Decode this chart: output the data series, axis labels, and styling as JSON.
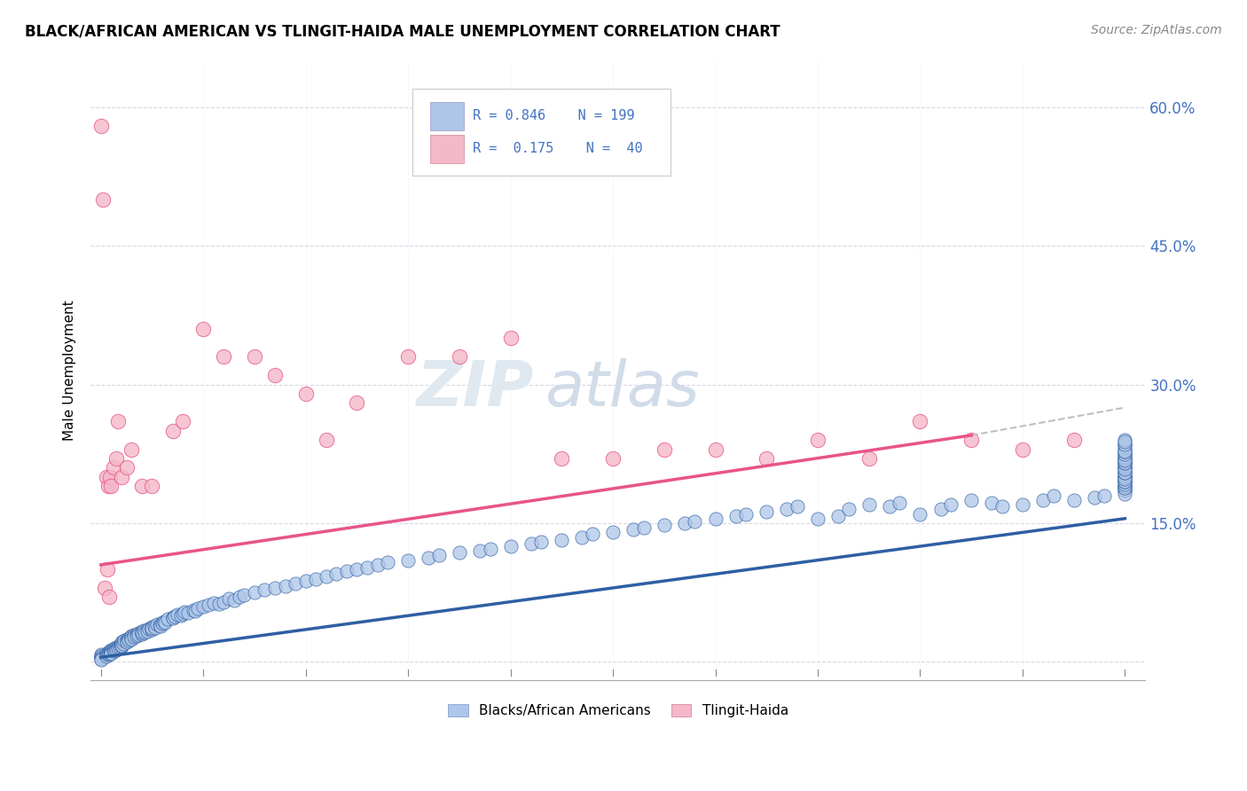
{
  "title": "BLACK/AFRICAN AMERICAN VS TLINGIT-HAIDA MALE UNEMPLOYMENT CORRELATION CHART",
  "source": "Source: ZipAtlas.com",
  "ylabel": "Male Unemployment",
  "color_blue": "#aec6e8",
  "color_pink": "#f4b8c8",
  "line_blue": "#2e5fa3",
  "line_pink": "#e8548a",
  "line_dash_color": "#c0c0c0",
  "legend_text_color": "#4472c4",
  "background_color": "#ffffff",
  "grid_color": "#d8d8e8",
  "ylim": [
    -0.02,
    0.65
  ],
  "xlim": [
    -0.01,
    1.02
  ],
  "blue_line_x0": 0.0,
  "blue_line_y0": 0.005,
  "blue_line_x1": 1.0,
  "blue_line_y1": 0.155,
  "pink_line_x0": 0.0,
  "pink_line_y0": 0.105,
  "pink_line_x1": 0.85,
  "pink_line_y1": 0.245,
  "dash_line_x0": 0.85,
  "dash_line_y0": 0.245,
  "dash_line_x1": 1.0,
  "dash_line_y1": 0.275,
  "yticks": [
    0.0,
    0.15,
    0.3,
    0.45,
    0.6
  ],
  "ytick_labels": [
    "",
    "15.0%",
    "30.0%",
    "45.0%",
    "60.0%"
  ],
  "scatter_blue_x": [
    0.0,
    0.0,
    0.0,
    0.0,
    0.0,
    0.0,
    0.0,
    0.005,
    0.005,
    0.005,
    0.007,
    0.007,
    0.008,
    0.008,
    0.01,
    0.01,
    0.01,
    0.01,
    0.01,
    0.01,
    0.01,
    0.012,
    0.012,
    0.013,
    0.013,
    0.015,
    0.015,
    0.015,
    0.017,
    0.017,
    0.018,
    0.018,
    0.02,
    0.02,
    0.02,
    0.02,
    0.02,
    0.02,
    0.02,
    0.022,
    0.022,
    0.023,
    0.025,
    0.025,
    0.025,
    0.027,
    0.027,
    0.03,
    0.03,
    0.03,
    0.03,
    0.03,
    0.032,
    0.032,
    0.035,
    0.035,
    0.037,
    0.037,
    0.04,
    0.04,
    0.04,
    0.04,
    0.042,
    0.043,
    0.045,
    0.045,
    0.047,
    0.05,
    0.05,
    0.05,
    0.05,
    0.052,
    0.053,
    0.055,
    0.057,
    0.058,
    0.06,
    0.06,
    0.062,
    0.063,
    0.065,
    0.07,
    0.07,
    0.072,
    0.075,
    0.078,
    0.08,
    0.082,
    0.085,
    0.09,
    0.092,
    0.095,
    0.1,
    0.105,
    0.11,
    0.115,
    0.12,
    0.125,
    0.13,
    0.135,
    0.14,
    0.15,
    0.16,
    0.17,
    0.18,
    0.19,
    0.2,
    0.21,
    0.22,
    0.23,
    0.24,
    0.25,
    0.26,
    0.27,
    0.28,
    0.3,
    0.32,
    0.33,
    0.35,
    0.37,
    0.38,
    0.4,
    0.42,
    0.43,
    0.45,
    0.47,
    0.48,
    0.5,
    0.52,
    0.53,
    0.55,
    0.57,
    0.58,
    0.6,
    0.62,
    0.63,
    0.65,
    0.67,
    0.68,
    0.7,
    0.72,
    0.73,
    0.75,
    0.77,
    0.78,
    0.8,
    0.82,
    0.83,
    0.85,
    0.87,
    0.88,
    0.9,
    0.92,
    0.93,
    0.95,
    0.97,
    0.98,
    1.0,
    1.0,
    1.0,
    1.0,
    1.0,
    1.0,
    1.0,
    1.0,
    1.0,
    1.0,
    1.0,
    1.0,
    1.0,
    1.0,
    1.0,
    1.0,
    1.0,
    1.0,
    1.0,
    1.0,
    1.0,
    1.0,
    1.0,
    1.0,
    1.0,
    1.0,
    1.0,
    1.0,
    1.0,
    1.0,
    1.0,
    1.0,
    1.0,
    1.0,
    1.0,
    1.0,
    1.0,
    1.0,
    1.0,
    1.0,
    1.0,
    1.0
  ],
  "scatter_blue_y": [
    0.005,
    0.007,
    0.008,
    0.006,
    0.004,
    0.003,
    0.002,
    0.008,
    0.009,
    0.006,
    0.01,
    0.008,
    0.011,
    0.009,
    0.012,
    0.013,
    0.011,
    0.01,
    0.012,
    0.01,
    0.009,
    0.014,
    0.013,
    0.015,
    0.012,
    0.016,
    0.014,
    0.013,
    0.017,
    0.015,
    0.018,
    0.016,
    0.019,
    0.02,
    0.018,
    0.017,
    0.019,
    0.021,
    0.018,
    0.022,
    0.02,
    0.023,
    0.024,
    0.022,
    0.021,
    0.025,
    0.023,
    0.026,
    0.028,
    0.025,
    0.027,
    0.024,
    0.029,
    0.027,
    0.03,
    0.028,
    0.031,
    0.029,
    0.033,
    0.031,
    0.03,
    0.032,
    0.034,
    0.032,
    0.035,
    0.033,
    0.036,
    0.038,
    0.036,
    0.035,
    0.037,
    0.039,
    0.037,
    0.041,
    0.04,
    0.039,
    0.043,
    0.042,
    0.044,
    0.043,
    0.046,
    0.048,
    0.047,
    0.049,
    0.051,
    0.05,
    0.052,
    0.054,
    0.053,
    0.056,
    0.055,
    0.058,
    0.06,
    0.062,
    0.064,
    0.063,
    0.065,
    0.068,
    0.067,
    0.07,
    0.072,
    0.075,
    0.078,
    0.08,
    0.082,
    0.085,
    0.088,
    0.09,
    0.092,
    0.095,
    0.098,
    0.1,
    0.102,
    0.105,
    0.108,
    0.11,
    0.113,
    0.115,
    0.118,
    0.12,
    0.122,
    0.125,
    0.128,
    0.13,
    0.132,
    0.135,
    0.138,
    0.14,
    0.143,
    0.145,
    0.148,
    0.15,
    0.152,
    0.155,
    0.158,
    0.16,
    0.162,
    0.165,
    0.168,
    0.155,
    0.158,
    0.165,
    0.17,
    0.168,
    0.172,
    0.16,
    0.165,
    0.17,
    0.175,
    0.172,
    0.168,
    0.17,
    0.175,
    0.18,
    0.175,
    0.178,
    0.18,
    0.185,
    0.185,
    0.19,
    0.188,
    0.182,
    0.195,
    0.19,
    0.188,
    0.192,
    0.195,
    0.2,
    0.198,
    0.195,
    0.2,
    0.205,
    0.202,
    0.198,
    0.205,
    0.21,
    0.208,
    0.205,
    0.21,
    0.215,
    0.212,
    0.208,
    0.215,
    0.22,
    0.218,
    0.215,
    0.22,
    0.225,
    0.222,
    0.218,
    0.225,
    0.23,
    0.228,
    0.235,
    0.232,
    0.228,
    0.235,
    0.24,
    0.238
  ],
  "scatter_pink_x": [
    0.0,
    0.002,
    0.004,
    0.005,
    0.006,
    0.007,
    0.008,
    0.009,
    0.01,
    0.012,
    0.015,
    0.017,
    0.02,
    0.025,
    0.03,
    0.04,
    0.05,
    0.07,
    0.08,
    0.1,
    0.12,
    0.15,
    0.17,
    0.2,
    0.22,
    0.25,
    0.3,
    0.35,
    0.4,
    0.45,
    0.5,
    0.55,
    0.6,
    0.65,
    0.7,
    0.75,
    0.8,
    0.85,
    0.9,
    0.95
  ],
  "scatter_pink_y": [
    0.58,
    0.5,
    0.08,
    0.2,
    0.1,
    0.19,
    0.07,
    0.2,
    0.19,
    0.21,
    0.22,
    0.26,
    0.2,
    0.21,
    0.23,
    0.19,
    0.19,
    0.25,
    0.26,
    0.36,
    0.33,
    0.33,
    0.31,
    0.29,
    0.24,
    0.28,
    0.33,
    0.33,
    0.35,
    0.22,
    0.22,
    0.23,
    0.23,
    0.22,
    0.24,
    0.22,
    0.26,
    0.24,
    0.23,
    0.24
  ]
}
